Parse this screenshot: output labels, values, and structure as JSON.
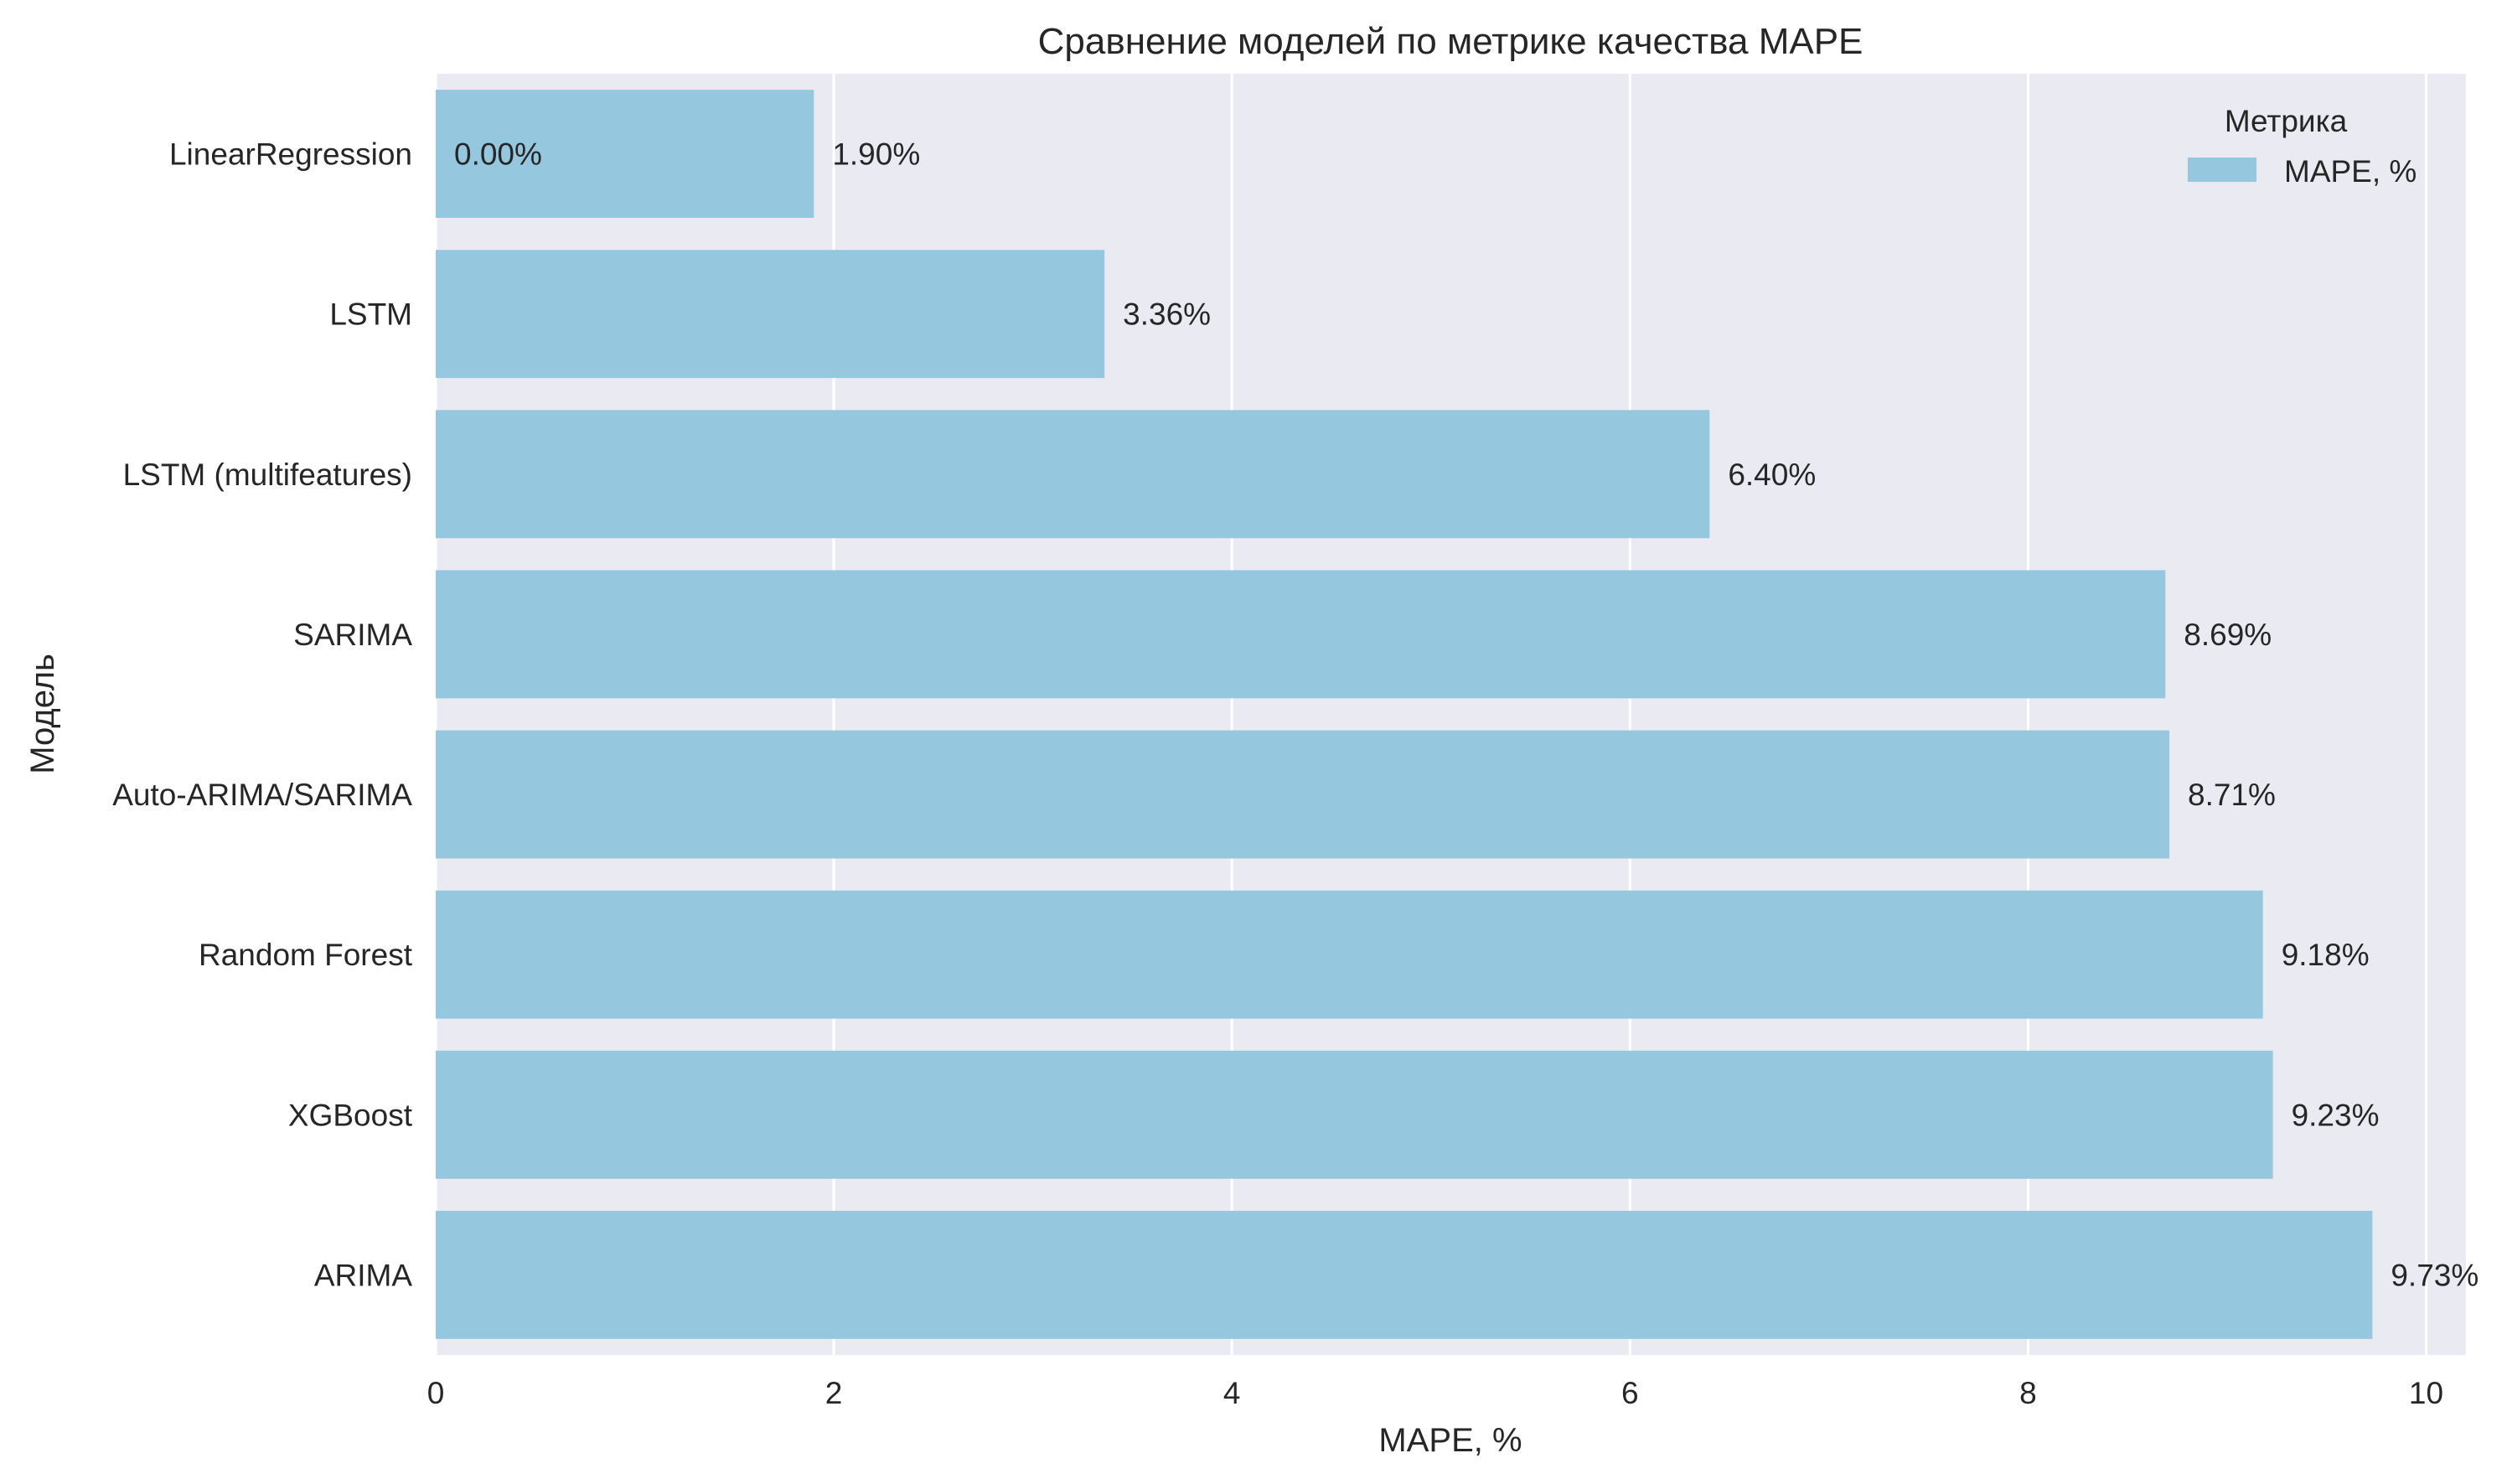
{
  "chart_data": {
    "type": "bar",
    "orientation": "horizontal",
    "title": "Сравнение моделей по метрике качества MAPE",
    "xlabel": "MAPE, %",
    "ylabel": "Модель",
    "categories": [
      "LinearRegression",
      "LSTM",
      "LSTM (multifeatures)",
      "SARIMA",
      "Auto-ARIMA/SARIMA",
      "Random Forest",
      "XGBoost",
      "ARIMA"
    ],
    "series": [
      {
        "name": "MAPE, %",
        "color": "#95c8de",
        "values": [
          1.9,
          3.36,
          6.4,
          8.69,
          8.71,
          9.18,
          9.23,
          9.73
        ],
        "data_labels": [
          "1.90%",
          "3.36%",
          "6.40%",
          "8.69%",
          "8.71%",
          "9.18%",
          "9.23%",
          "9.73%"
        ]
      }
    ],
    "extra_annotations": [
      {
        "text": "0.00%",
        "category": "LinearRegression",
        "value": 0
      }
    ],
    "xlim": [
      0,
      10.2
    ],
    "xticks": [
      0,
      2,
      4,
      6,
      8,
      10
    ],
    "xtick_labels": [
      "0",
      "2",
      "4",
      "6",
      "8",
      "10"
    ],
    "grid": true,
    "legend": {
      "title": "Метрика",
      "position": "top-right"
    },
    "background_color": "#eaeaf2",
    "grid_color": "#ffffff"
  }
}
